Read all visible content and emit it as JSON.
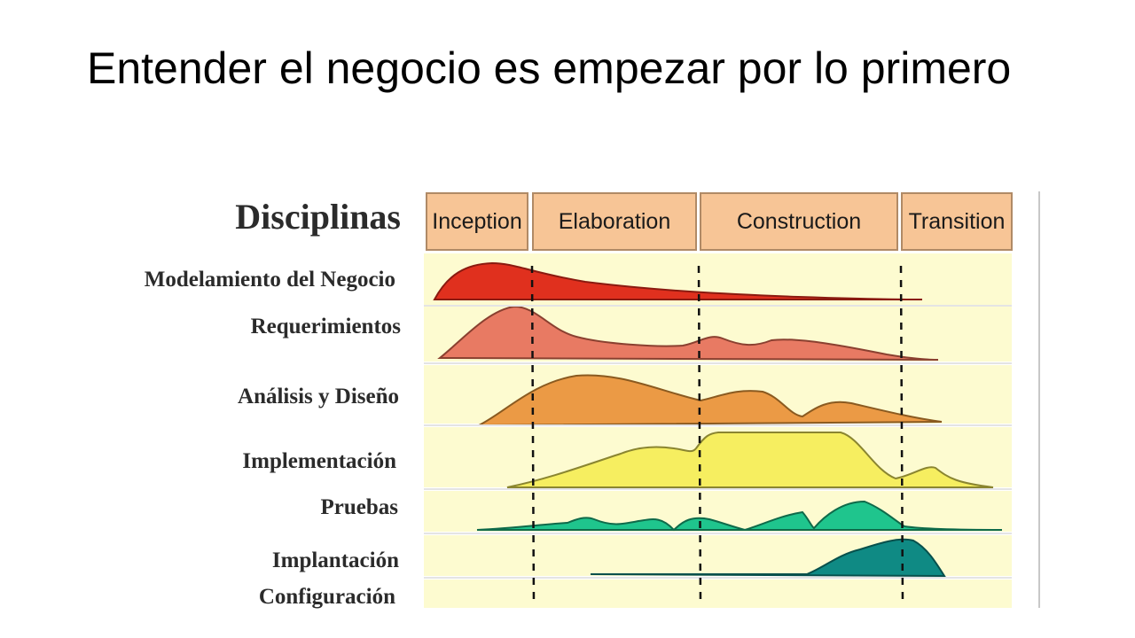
{
  "title": "Entender el negocio es empezar por lo primero",
  "diagram": {
    "heading": "Disciplinas",
    "phases": [
      {
        "name": "Inception"
      },
      {
        "name": "Elaboration"
      },
      {
        "name": "Construction"
      },
      {
        "name": "Transition"
      }
    ],
    "disciplines": [
      {
        "name": "Modelamiento del Negocio",
        "color": "#e0301e"
      },
      {
        "name": "Requerimientos",
        "color": "#e87a63"
      },
      {
        "name": "Análisis y Diseño",
        "color": "#eb9a45"
      },
      {
        "name": "Implementación",
        "color": "#f6ee60"
      },
      {
        "name": "Pruebas",
        "color": "#1fc58d"
      },
      {
        "name": "Implantación",
        "color": "#0f8a84"
      },
      {
        "name": "Configuración",
        "color": "#fdfbd0"
      }
    ],
    "colors": {
      "phase_fill": "#f7c596",
      "phase_border": "#b08a66",
      "band_fill": "#fdfbd0",
      "band_divider": "#e4e4e4"
    }
  }
}
